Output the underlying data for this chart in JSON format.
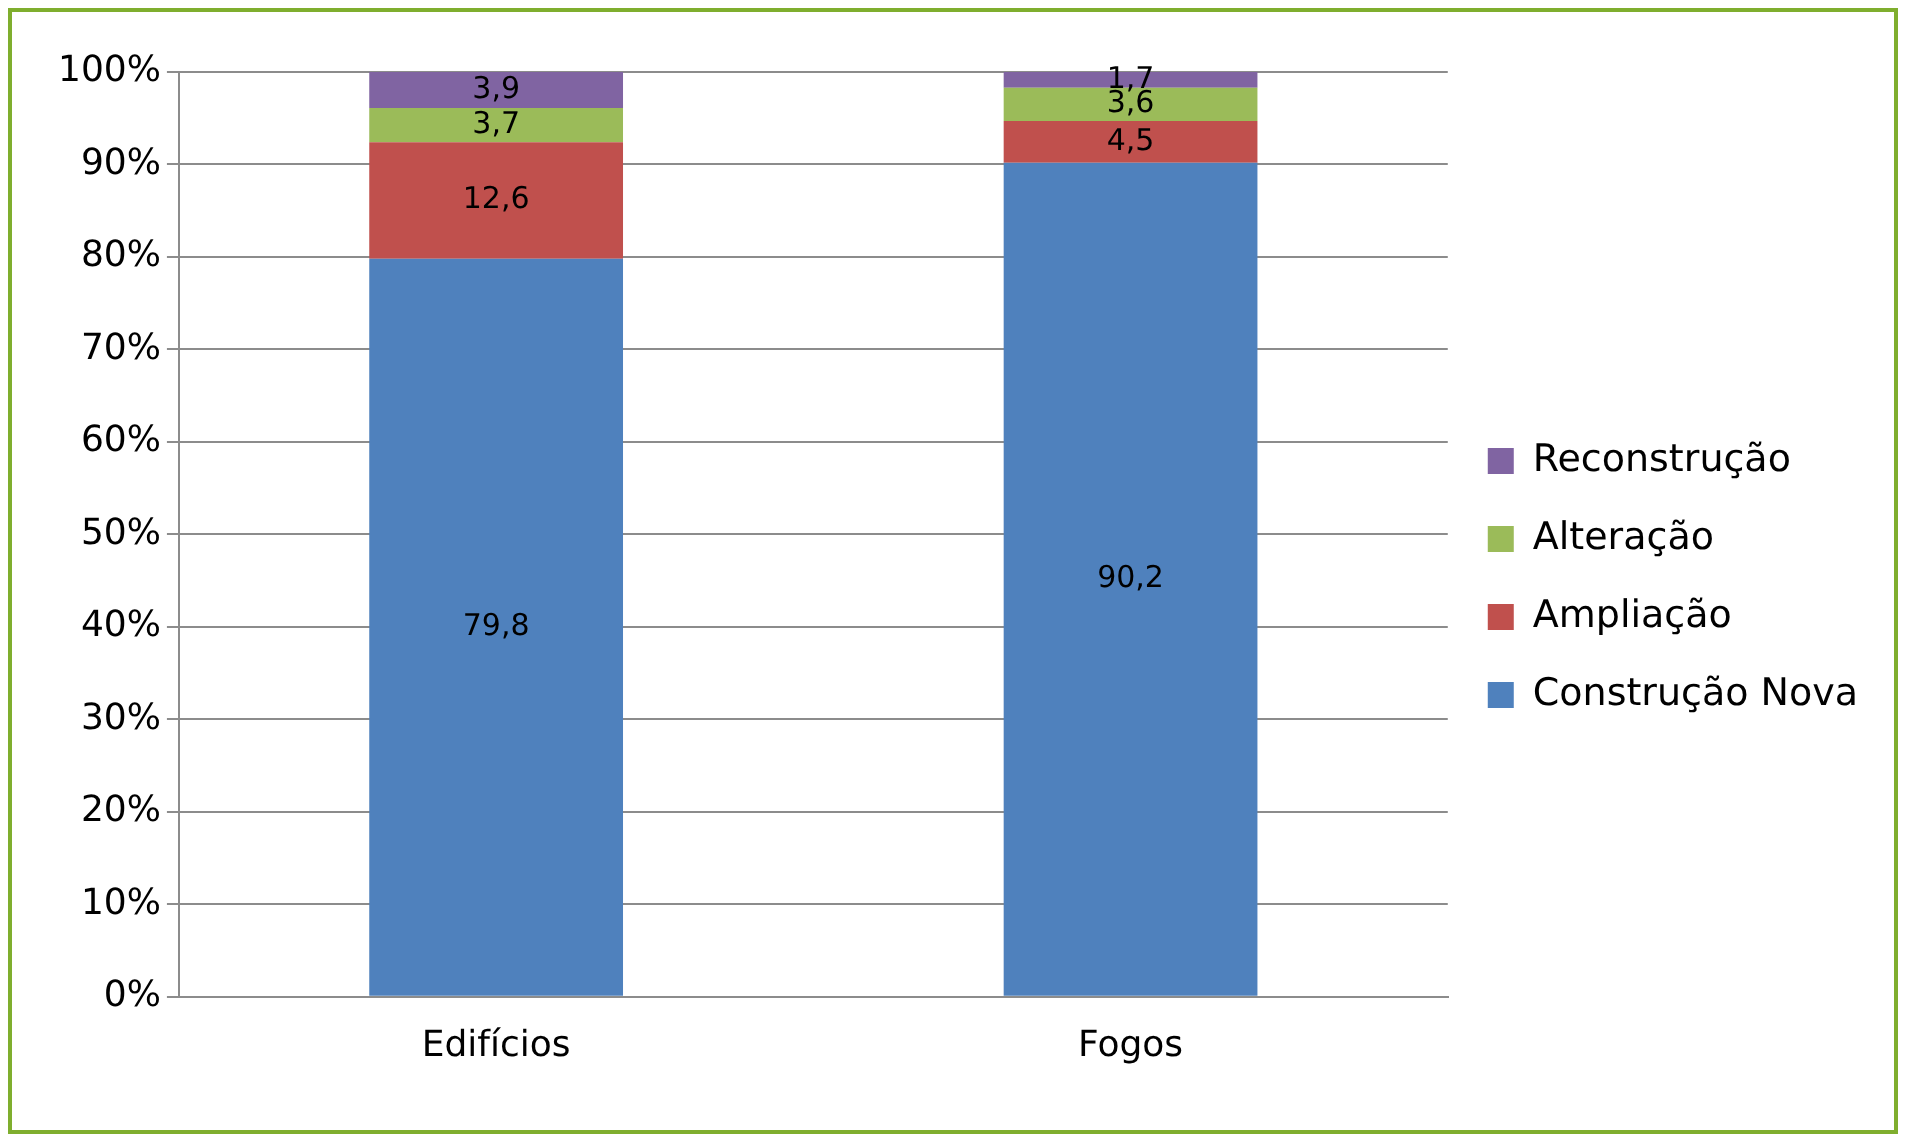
{
  "chart_data": {
    "type": "bar",
    "stacked": true,
    "categories": [
      "Edifícios",
      "Fogos"
    ],
    "series": [
      {
        "name": "Construção Nova",
        "color": "#4f81bd",
        "values": [
          79.8,
          90.2
        ],
        "value_labels": [
          "79,8",
          "90,2"
        ]
      },
      {
        "name": "Ampliação",
        "color": "#c0504d",
        "values": [
          12.6,
          4.5
        ],
        "value_labels": [
          "12,6",
          "4,5"
        ]
      },
      {
        "name": "Alteração",
        "color": "#9bbb59",
        "values": [
          3.7,
          3.6
        ],
        "value_labels": [
          "3,7",
          "3,6"
        ]
      },
      {
        "name": "Reconstrução",
        "color": "#8064a2",
        "values": [
          3.9,
          1.7
        ],
        "value_labels": [
          "3,9",
          "1,7"
        ]
      }
    ],
    "ylim": [
      0,
      100
    ],
    "yticks": [
      {
        "value": 0,
        "label": "0%"
      },
      {
        "value": 10,
        "label": "10%"
      },
      {
        "value": 20,
        "label": "20%"
      },
      {
        "value": 30,
        "label": "30%"
      },
      {
        "value": 40,
        "label": "40%"
      },
      {
        "value": 50,
        "label": "50%"
      },
      {
        "value": 60,
        "label": "60%"
      },
      {
        "value": 70,
        "label": "70%"
      },
      {
        "value": 80,
        "label": "80%"
      },
      {
        "value": 90,
        "label": "90%"
      },
      {
        "value": 100,
        "label": "100%"
      }
    ],
    "grid": "y",
    "legend": "right"
  }
}
